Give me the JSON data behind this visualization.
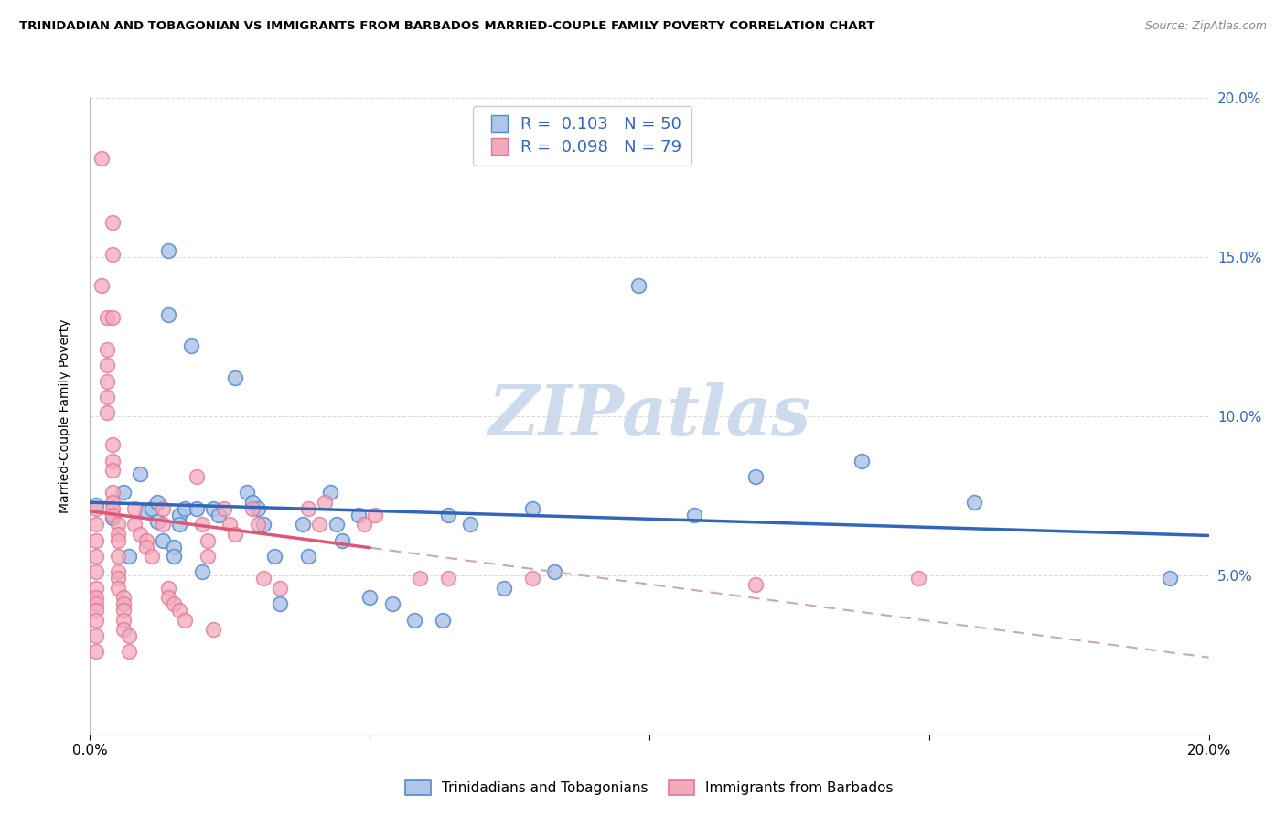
{
  "title": "TRINIDADIAN AND TOBAGONIAN VS IMMIGRANTS FROM BARBADOS MARRIED-COUPLE FAMILY POVERTY CORRELATION CHART",
  "source": "Source: ZipAtlas.com",
  "ylabel": "Married-Couple Family Poverty",
  "x_min": 0.0,
  "x_max": 0.2,
  "y_min": 0.0,
  "y_max": 0.2,
  "y_ticks": [
    0.05,
    0.1,
    0.15,
    0.2
  ],
  "y_tick_labels": [
    "5.0%",
    "10.0%",
    "15.0%",
    "20.0%"
  ],
  "legend_label_blue": "Trinidadians and Tobagonians",
  "legend_label_pink": "Immigrants from Barbados",
  "R_blue": 0.103,
  "N_blue": 50,
  "R_pink": 0.098,
  "N_pink": 79,
  "blue_color": "#AEC6E8",
  "pink_color": "#F4AABA",
  "blue_edge_color": "#5588CC",
  "pink_edge_color": "#DD7799",
  "blue_line_color": "#3366BB",
  "pink_line_color": "#DD5577",
  "dashed_line_color": "#CCAAAA",
  "blue_scatter": [
    [
      0.001,
      0.072
    ],
    [
      0.004,
      0.068
    ],
    [
      0.006,
      0.076
    ],
    [
      0.007,
      0.056
    ],
    [
      0.009,
      0.082
    ],
    [
      0.01,
      0.07
    ],
    [
      0.011,
      0.071
    ],
    [
      0.012,
      0.067
    ],
    [
      0.012,
      0.073
    ],
    [
      0.013,
      0.061
    ],
    [
      0.014,
      0.152
    ],
    [
      0.014,
      0.132
    ],
    [
      0.015,
      0.059
    ],
    [
      0.015,
      0.056
    ],
    [
      0.016,
      0.069
    ],
    [
      0.016,
      0.066
    ],
    [
      0.017,
      0.071
    ],
    [
      0.018,
      0.122
    ],
    [
      0.019,
      0.071
    ],
    [
      0.02,
      0.051
    ],
    [
      0.022,
      0.071
    ],
    [
      0.023,
      0.069
    ],
    [
      0.026,
      0.112
    ],
    [
      0.028,
      0.076
    ],
    [
      0.029,
      0.073
    ],
    [
      0.03,
      0.071
    ],
    [
      0.031,
      0.066
    ],
    [
      0.033,
      0.056
    ],
    [
      0.034,
      0.041
    ],
    [
      0.038,
      0.066
    ],
    [
      0.039,
      0.056
    ],
    [
      0.043,
      0.076
    ],
    [
      0.044,
      0.066
    ],
    [
      0.045,
      0.061
    ],
    [
      0.048,
      0.069
    ],
    [
      0.05,
      0.043
    ],
    [
      0.054,
      0.041
    ],
    [
      0.058,
      0.036
    ],
    [
      0.063,
      0.036
    ],
    [
      0.064,
      0.069
    ],
    [
      0.068,
      0.066
    ],
    [
      0.074,
      0.046
    ],
    [
      0.079,
      0.071
    ],
    [
      0.083,
      0.051
    ],
    [
      0.098,
      0.141
    ],
    [
      0.108,
      0.069
    ],
    [
      0.119,
      0.081
    ],
    [
      0.138,
      0.086
    ],
    [
      0.158,
      0.073
    ],
    [
      0.193,
      0.049
    ]
  ],
  "pink_scatter": [
    [
      0.001,
      0.071
    ],
    [
      0.001,
      0.066
    ],
    [
      0.001,
      0.061
    ],
    [
      0.001,
      0.056
    ],
    [
      0.001,
      0.051
    ],
    [
      0.001,
      0.046
    ],
    [
      0.001,
      0.043
    ],
    [
      0.001,
      0.041
    ],
    [
      0.001,
      0.039
    ],
    [
      0.001,
      0.036
    ],
    [
      0.001,
      0.031
    ],
    [
      0.001,
      0.026
    ],
    [
      0.002,
      0.181
    ],
    [
      0.002,
      0.141
    ],
    [
      0.003,
      0.131
    ],
    [
      0.003,
      0.121
    ],
    [
      0.003,
      0.116
    ],
    [
      0.003,
      0.111
    ],
    [
      0.003,
      0.106
    ],
    [
      0.003,
      0.101
    ],
    [
      0.004,
      0.161
    ],
    [
      0.004,
      0.151
    ],
    [
      0.004,
      0.131
    ],
    [
      0.004,
      0.091
    ],
    [
      0.004,
      0.086
    ],
    [
      0.004,
      0.083
    ],
    [
      0.004,
      0.076
    ],
    [
      0.004,
      0.073
    ],
    [
      0.004,
      0.071
    ],
    [
      0.004,
      0.069
    ],
    [
      0.005,
      0.066
    ],
    [
      0.005,
      0.063
    ],
    [
      0.005,
      0.061
    ],
    [
      0.005,
      0.056
    ],
    [
      0.005,
      0.051
    ],
    [
      0.005,
      0.049
    ],
    [
      0.005,
      0.046
    ],
    [
      0.006,
      0.043
    ],
    [
      0.006,
      0.041
    ],
    [
      0.006,
      0.039
    ],
    [
      0.006,
      0.036
    ],
    [
      0.006,
      0.033
    ],
    [
      0.007,
      0.031
    ],
    [
      0.007,
      0.026
    ],
    [
      0.008,
      0.071
    ],
    [
      0.008,
      0.066
    ],
    [
      0.009,
      0.063
    ],
    [
      0.01,
      0.061
    ],
    [
      0.01,
      0.059
    ],
    [
      0.011,
      0.056
    ],
    [
      0.013,
      0.071
    ],
    [
      0.013,
      0.066
    ],
    [
      0.014,
      0.046
    ],
    [
      0.014,
      0.043
    ],
    [
      0.015,
      0.041
    ],
    [
      0.016,
      0.039
    ],
    [
      0.017,
      0.036
    ],
    [
      0.019,
      0.081
    ],
    [
      0.02,
      0.066
    ],
    [
      0.021,
      0.061
    ],
    [
      0.021,
      0.056
    ],
    [
      0.022,
      0.033
    ],
    [
      0.024,
      0.071
    ],
    [
      0.025,
      0.066
    ],
    [
      0.026,
      0.063
    ],
    [
      0.029,
      0.071
    ],
    [
      0.03,
      0.066
    ],
    [
      0.031,
      0.049
    ],
    [
      0.034,
      0.046
    ],
    [
      0.039,
      0.071
    ],
    [
      0.041,
      0.066
    ],
    [
      0.042,
      0.073
    ],
    [
      0.049,
      0.066
    ],
    [
      0.051,
      0.069
    ],
    [
      0.059,
      0.049
    ],
    [
      0.064,
      0.049
    ],
    [
      0.079,
      0.049
    ],
    [
      0.119,
      0.047
    ],
    [
      0.148,
      0.049
    ]
  ],
  "watermark": "ZIPatlas",
  "watermark_color": "#C8D8EC",
  "background_color": "#FFFFFF",
  "grid_color": "#DDDDDD",
  "grid_linestyle": "--"
}
